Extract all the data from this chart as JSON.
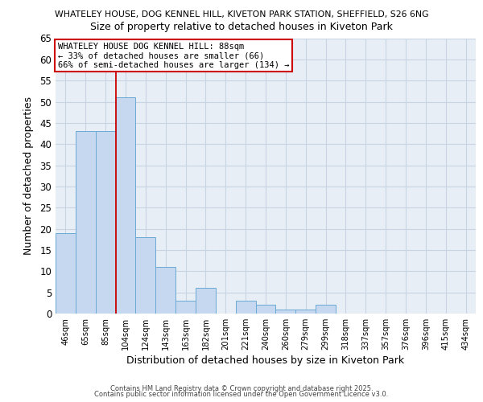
{
  "title1": "WHATELEY HOUSE, DOG KENNEL HILL, KIVETON PARK STATION, SHEFFIELD, S26 6NG",
  "title2": "Size of property relative to detached houses in Kiveton Park",
  "xlabel": "Distribution of detached houses by size in Kiveton Park",
  "ylabel": "Number of detached properties",
  "categories": [
    "46sqm",
    "65sqm",
    "85sqm",
    "104sqm",
    "124sqm",
    "143sqm",
    "163sqm",
    "182sqm",
    "201sqm",
    "221sqm",
    "240sqm",
    "260sqm",
    "279sqm",
    "299sqm",
    "318sqm",
    "337sqm",
    "357sqm",
    "376sqm",
    "396sqm",
    "415sqm",
    "434sqm"
  ],
  "values": [
    19,
    43,
    43,
    51,
    18,
    11,
    3,
    6,
    0,
    3,
    2,
    1,
    1,
    2,
    0,
    0,
    0,
    0,
    0,
    0,
    0
  ],
  "bar_color": "#c5d8ef",
  "bar_edge_color": "#6aaad4",
  "grid_color": "#c8d4e3",
  "background_color": "#ffffff",
  "plot_bg_color": "#e8eef6",
  "red_line_x": 2.5,
  "annotation_title": "WHATELEY HOUSE DOG KENNEL HILL: 88sqm",
  "annotation_line1": "← 33% of detached houses are smaller (66)",
  "annotation_line2": "66% of semi-detached houses are larger (134) →",
  "annotation_box_color": "#ffffff",
  "annotation_border_color": "#cc0000",
  "red_line_color": "#cc0000",
  "footer1": "Contains HM Land Registry data © Crown copyright and database right 2025.",
  "footer2": "Contains public sector information licensed under the Open Government Licence v3.0.",
  "ylim": [
    0,
    65
  ],
  "yticks": [
    0,
    5,
    10,
    15,
    20,
    25,
    30,
    35,
    40,
    45,
    50,
    55,
    60,
    65
  ]
}
